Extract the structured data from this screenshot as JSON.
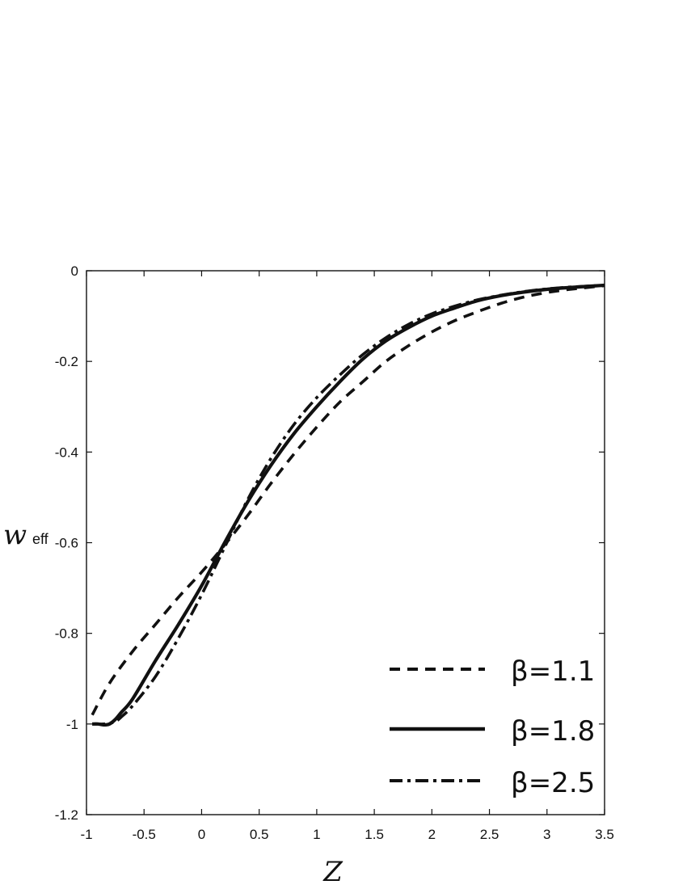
{
  "chart_data": {
    "type": "line",
    "title": "",
    "xlabel": "Z",
    "ylabel_main": "w",
    "ylabel_sub": "eff",
    "xlim": [
      -1,
      3.5
    ],
    "ylim": [
      -1.2,
      0
    ],
    "xticks": [
      -1,
      -0.5,
      0,
      0.5,
      1,
      1.5,
      2,
      2.5,
      3,
      3.5
    ],
    "xtick_labels": [
      "-1",
      "-0.5",
      "0",
      "0.5",
      "1",
      "1.5",
      "2",
      "2.5",
      "3",
      "3.5"
    ],
    "yticks": [
      0,
      -0.2,
      -0.4,
      -0.6,
      -0.8,
      -1,
      -1.2
    ],
    "ytick_labels": [
      "0",
      "-0.2",
      "-0.4",
      "-0.6",
      "-0.8",
      "-1",
      "-1.2"
    ],
    "grid": false,
    "legend_position": "bottom-right",
    "series": [
      {
        "name": "β=1.1",
        "style": "dashed",
        "x": [
          -0.95,
          -0.8,
          -0.6,
          -0.4,
          -0.2,
          0,
          0.2,
          0.4,
          0.6,
          0.8,
          1.0,
          1.2,
          1.4,
          1.6,
          1.8,
          2.0,
          2.2,
          2.4,
          2.6,
          2.8,
          3.0,
          3.2,
          3.5
        ],
        "y": [
          -0.98,
          -0.91,
          -0.84,
          -0.78,
          -0.72,
          -0.665,
          -0.605,
          -0.54,
          -0.47,
          -0.405,
          -0.345,
          -0.29,
          -0.245,
          -0.2,
          -0.165,
          -0.135,
          -0.11,
          -0.09,
          -0.072,
          -0.058,
          -0.048,
          -0.041,
          -0.033
        ]
      },
      {
        "name": "β=1.8",
        "style": "solid",
        "x": [
          -0.95,
          -0.9,
          -0.85,
          -0.8,
          -0.75,
          -0.7,
          -0.6,
          -0.4,
          -0.2,
          0,
          0.2,
          0.4,
          0.6,
          0.8,
          1.0,
          1.2,
          1.4,
          1.6,
          1.8,
          2.0,
          2.2,
          2.4,
          2.6,
          2.8,
          3.0,
          3.2,
          3.5
        ],
        "y": [
          -1.0,
          -1.0,
          -1.002,
          -1.0,
          -0.99,
          -0.975,
          -0.945,
          -0.86,
          -0.78,
          -0.695,
          -0.6,
          -0.51,
          -0.43,
          -0.36,
          -0.3,
          -0.245,
          -0.195,
          -0.155,
          -0.125,
          -0.1,
          -0.082,
          -0.066,
          -0.055,
          -0.047,
          -0.041,
          -0.037,
          -0.032
        ]
      },
      {
        "name": "β=2.5",
        "style": "dashdot",
        "x": [
          -0.95,
          -0.9,
          -0.85,
          -0.8,
          -0.75,
          -0.7,
          -0.6,
          -0.4,
          -0.2,
          0,
          0.2,
          0.4,
          0.6,
          0.8,
          1.0,
          1.2,
          1.4,
          1.6,
          1.8,
          2.0,
          2.2,
          2.4,
          2.6,
          2.8,
          3.0,
          3.2,
          3.5
        ],
        "y": [
          -1.0,
          -1.0,
          -1.0,
          -0.998,
          -0.995,
          -0.985,
          -0.96,
          -0.895,
          -0.81,
          -0.715,
          -0.61,
          -0.505,
          -0.415,
          -0.34,
          -0.28,
          -0.23,
          -0.185,
          -0.148,
          -0.118,
          -0.095,
          -0.078,
          -0.064,
          -0.054,
          -0.046,
          -0.04,
          -0.036,
          -0.032
        ]
      }
    ]
  }
}
